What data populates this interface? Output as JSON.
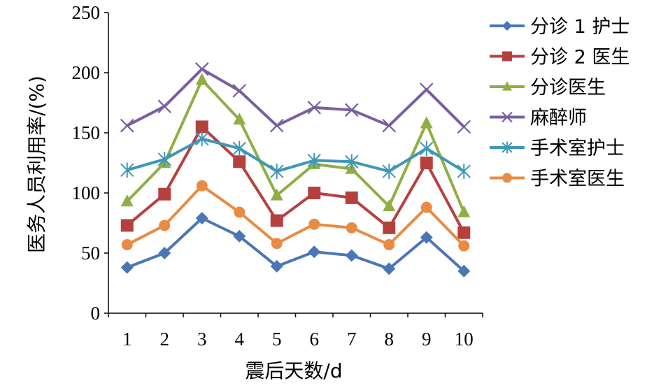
{
  "chart_data": {
    "type": "line",
    "xlabel": "震后天数/d",
    "ylabel": "医务人员利用率/(%)",
    "ylim": [
      0,
      250
    ],
    "yticks": [
      0,
      50,
      100,
      150,
      200,
      250
    ],
    "categories": [
      "1",
      "2",
      "3",
      "4",
      "5",
      "6",
      "7",
      "8",
      "9",
      "10"
    ],
    "grid": false,
    "legend": "right",
    "series": [
      {
        "name": "分诊 1 护士",
        "color": "#4a76b8",
        "marker": "diamond",
        "values": [
          38,
          50,
          79,
          64,
          39,
          51,
          48,
          37,
          63,
          35
        ]
      },
      {
        "name": "分诊 2 医生",
        "color": "#b5413f",
        "marker": "square",
        "values": [
          73,
          99,
          155,
          126,
          77,
          100,
          96,
          71,
          125,
          67
        ]
      },
      {
        "name": "分诊医生",
        "color": "#8faf45",
        "marker": "triangle",
        "values": [
          93,
          125,
          194,
          161,
          98,
          124,
          120,
          89,
          158,
          84
        ]
      },
      {
        "name": "麻醉师",
        "color": "#7a5ea0",
        "marker": "x",
        "values": [
          156,
          172,
          203,
          185,
          156,
          171,
          169,
          156,
          186,
          155
        ]
      },
      {
        "name": "手术室护士",
        "color": "#3f97b8",
        "marker": "star",
        "values": [
          119,
          128,
          145,
          137,
          118,
          127,
          126,
          118,
          137,
          118
        ]
      },
      {
        "name": "手术室医生",
        "color": "#e88b45",
        "marker": "circle",
        "values": [
          57,
          73,
          106,
          84,
          58,
          74,
          71,
          57,
          88,
          56
        ]
      }
    ]
  }
}
